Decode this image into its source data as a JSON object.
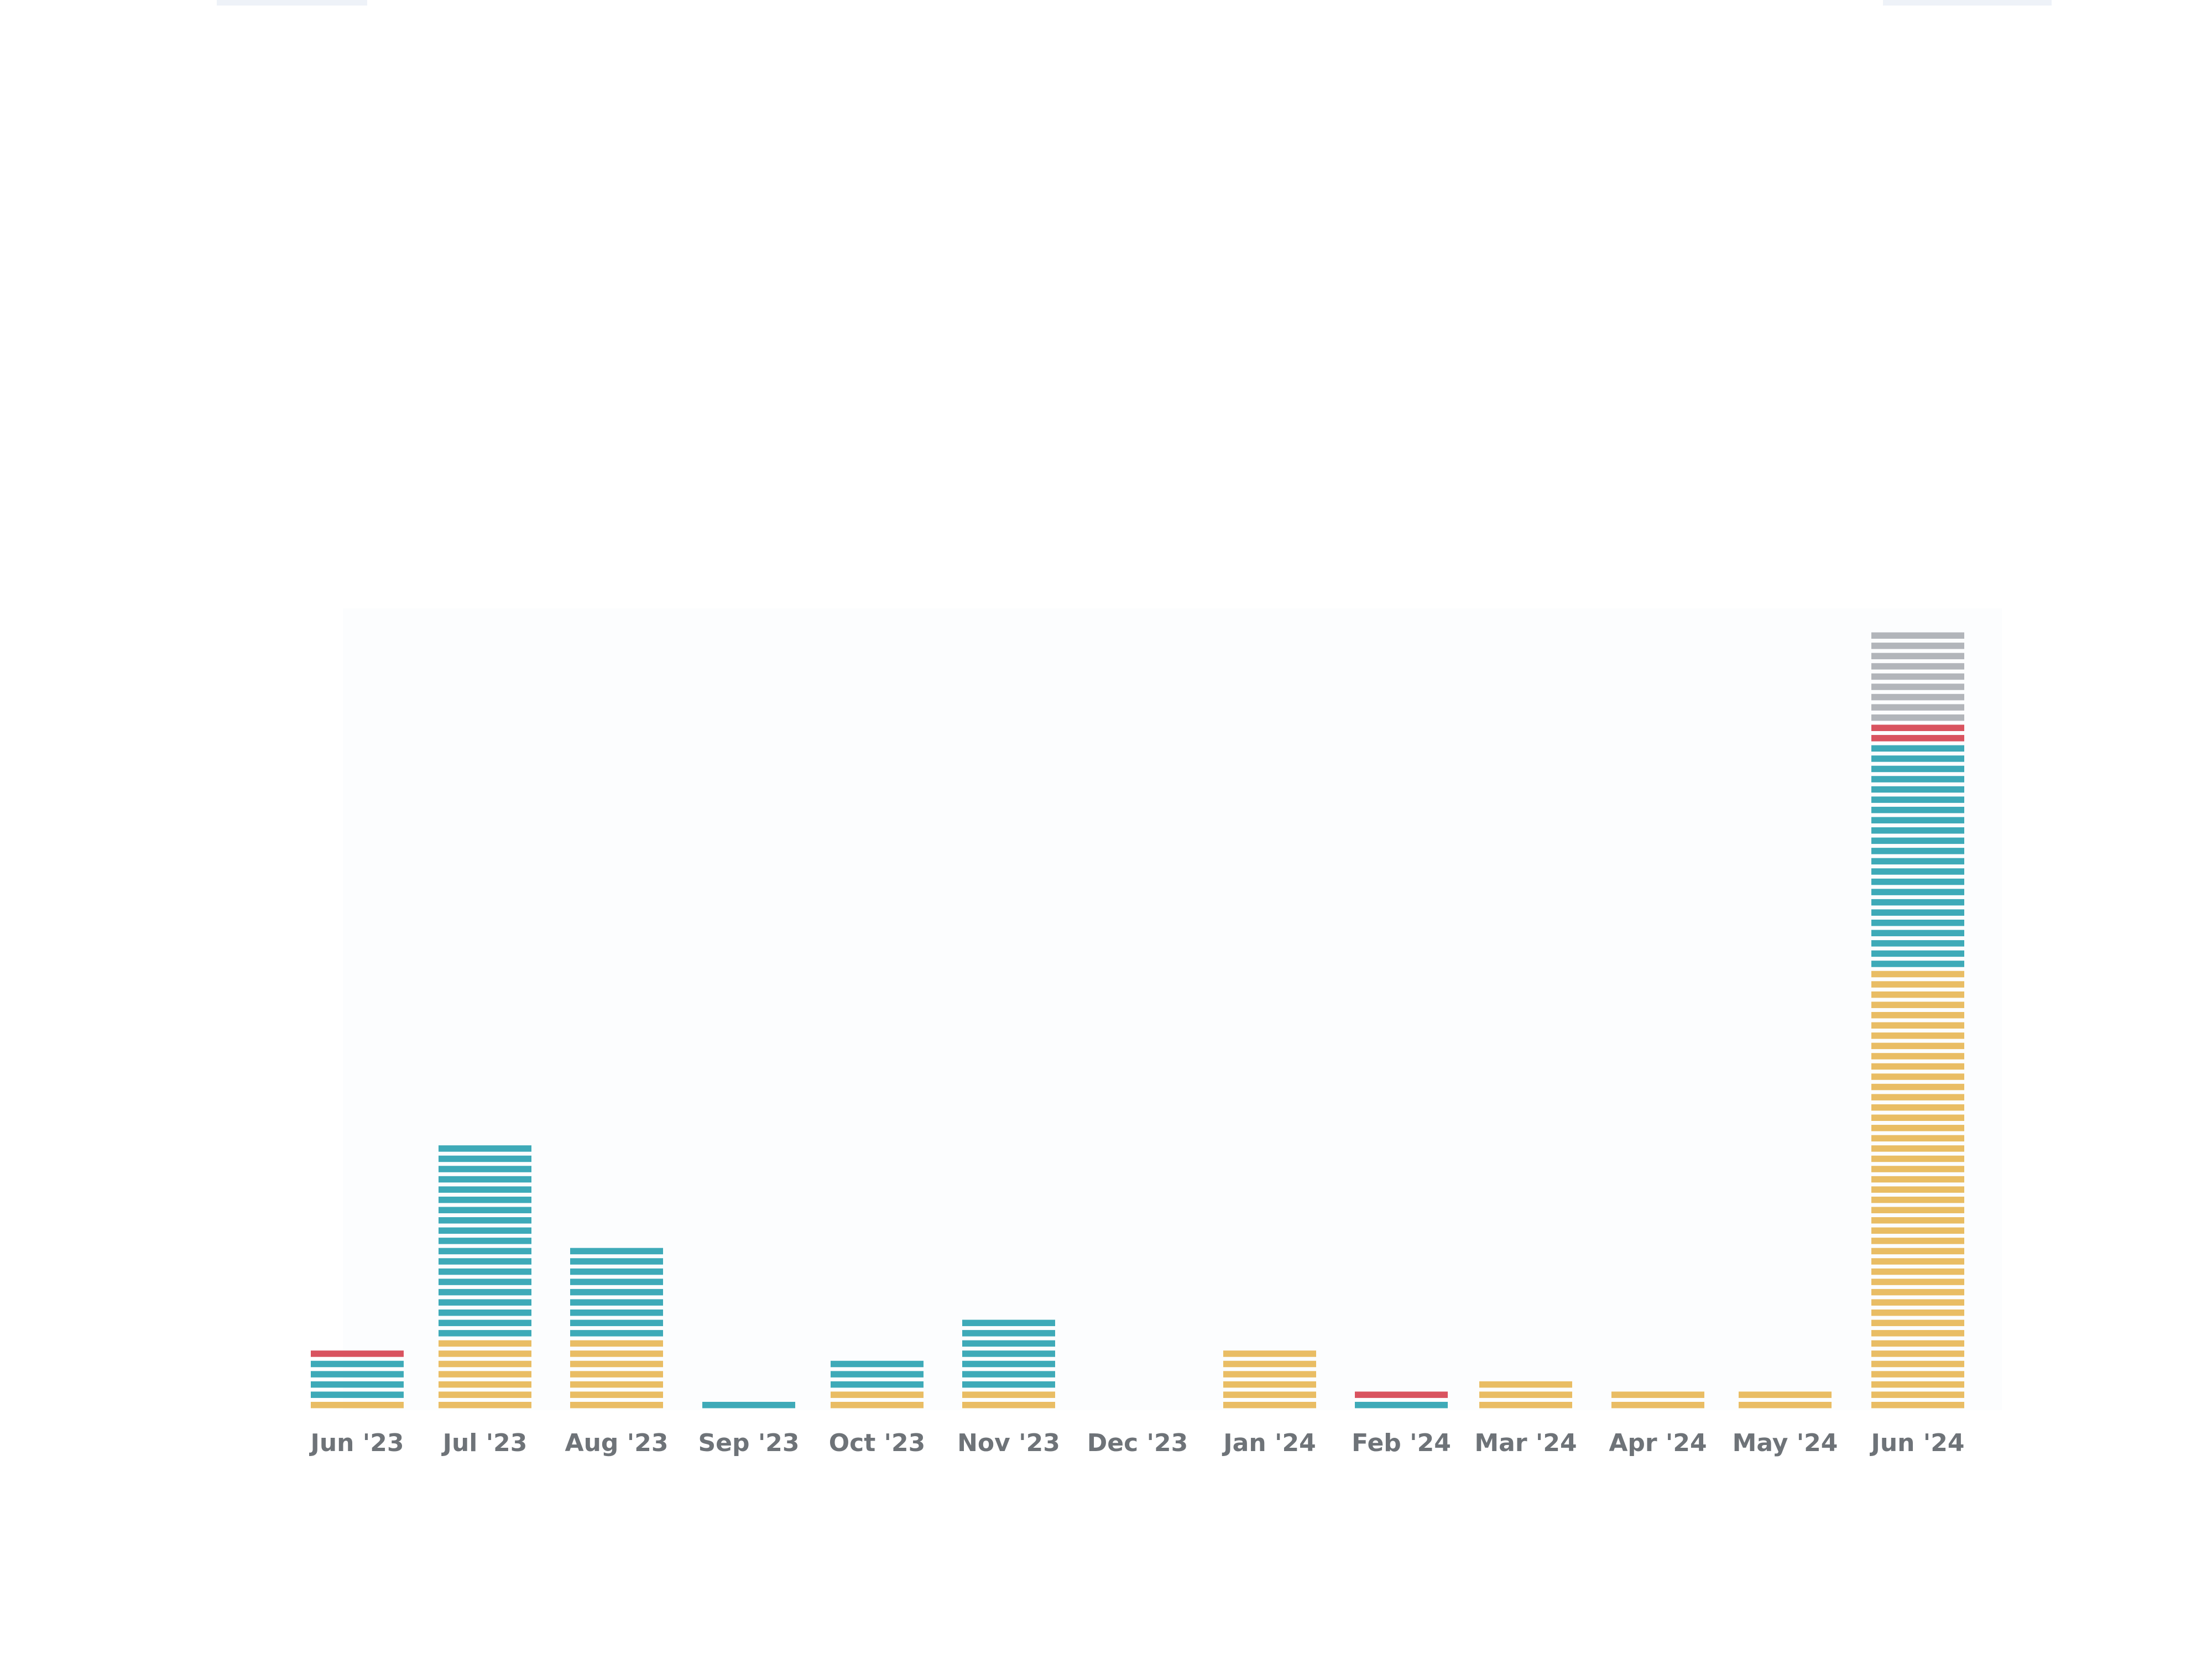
{
  "colors": {
    "segment_1": "#e9bd64",
    "segment_2": "#3eaab8",
    "segment_3": "#d9535f",
    "segment_4": "#b2b5ba",
    "axis_label": "#6e7378"
  },
  "chart_data": {
    "type": "bar",
    "stacked": true,
    "unit_blocks": true,
    "title": "",
    "xlabel": "",
    "ylabel": "",
    "legend": "none",
    "grid": false,
    "categories": [
      "Jun '23",
      "Jul '23",
      "Aug '23",
      "Sep '23",
      "Oct '23",
      "Nov '23",
      "Dec '23",
      "Jan '24",
      "Feb '24",
      "Mar '24",
      "Apr '24",
      "May '24",
      "Jun '24"
    ],
    "series": [
      {
        "color": "#e9bd64",
        "values": [
          1,
          7,
          7,
          0,
          2,
          2,
          0,
          6,
          0,
          3,
          2,
          2,
          43
        ]
      },
      {
        "color": "#3eaab8",
        "values": [
          4,
          19,
          9,
          1,
          3,
          7,
          0,
          0,
          1,
          0,
          0,
          0,
          22
        ]
      },
      {
        "color": "#d9535f",
        "values": [
          1,
          0,
          0,
          0,
          0,
          0,
          0,
          0,
          1,
          0,
          0,
          0,
          2
        ]
      },
      {
        "color": "#b2b5ba",
        "values": [
          0,
          0,
          0,
          0,
          0,
          0,
          0,
          0,
          0,
          0,
          0,
          0,
          9
        ]
      }
    ],
    "ylim": [
      0,
      76
    ]
  }
}
